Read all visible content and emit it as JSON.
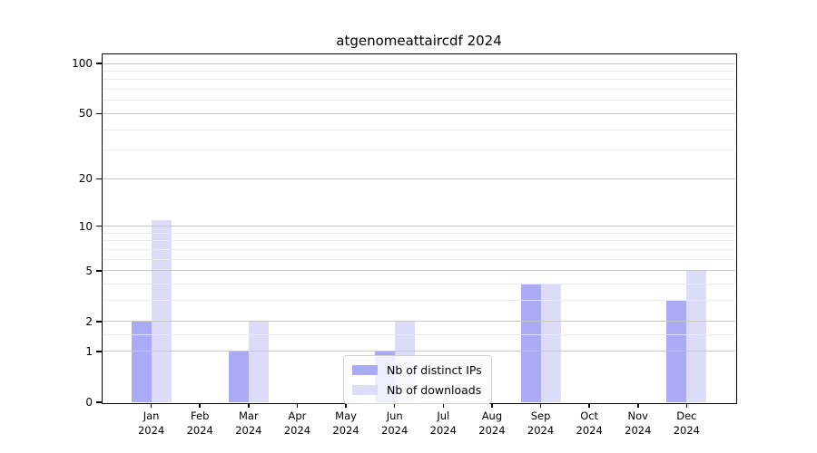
{
  "figure": {
    "title": "atgenomeattaircdf 2024"
  },
  "chart_data": {
    "type": "bar",
    "title": "atgenomeattaircdf 2024",
    "categories": [
      "Jan",
      "Feb",
      "Mar",
      "Apr",
      "May",
      "Jun",
      "Jul",
      "Aug",
      "Sep",
      "Oct",
      "Nov",
      "Dec"
    ],
    "x_tick_year": "2024",
    "series": [
      {
        "name": "Nb of distinct IPs",
        "color": "#aaaaf5",
        "values": [
          2,
          0,
          1,
          0,
          0,
          1,
          0,
          0,
          4,
          0,
          0,
          3
        ]
      },
      {
        "name": "Nb of downloads",
        "color": "#dcdcf8",
        "values": [
          11,
          0,
          2,
          0,
          0,
          2,
          0,
          0,
          4,
          0,
          0,
          5
        ]
      }
    ],
    "y_axis": {
      "scale": "log10(1+v)",
      "major_ticks": [
        0,
        1,
        2,
        5,
        10,
        20,
        50,
        100
      ],
      "minor_ticks": [
        1.5,
        3,
        4,
        6,
        7,
        8,
        9,
        30,
        40,
        60,
        70,
        80,
        90
      ],
      "range": [
        0,
        113
      ]
    },
    "xlabel": "",
    "ylabel": "",
    "legend_position": "lower center",
    "grid": "on"
  },
  "colors": {
    "major_grid": "#c6c6c6",
    "minor_grid": "#eaeaea",
    "axis": "#000000",
    "background": "#ffffff",
    "legend_border": "#d0d0d0"
  }
}
